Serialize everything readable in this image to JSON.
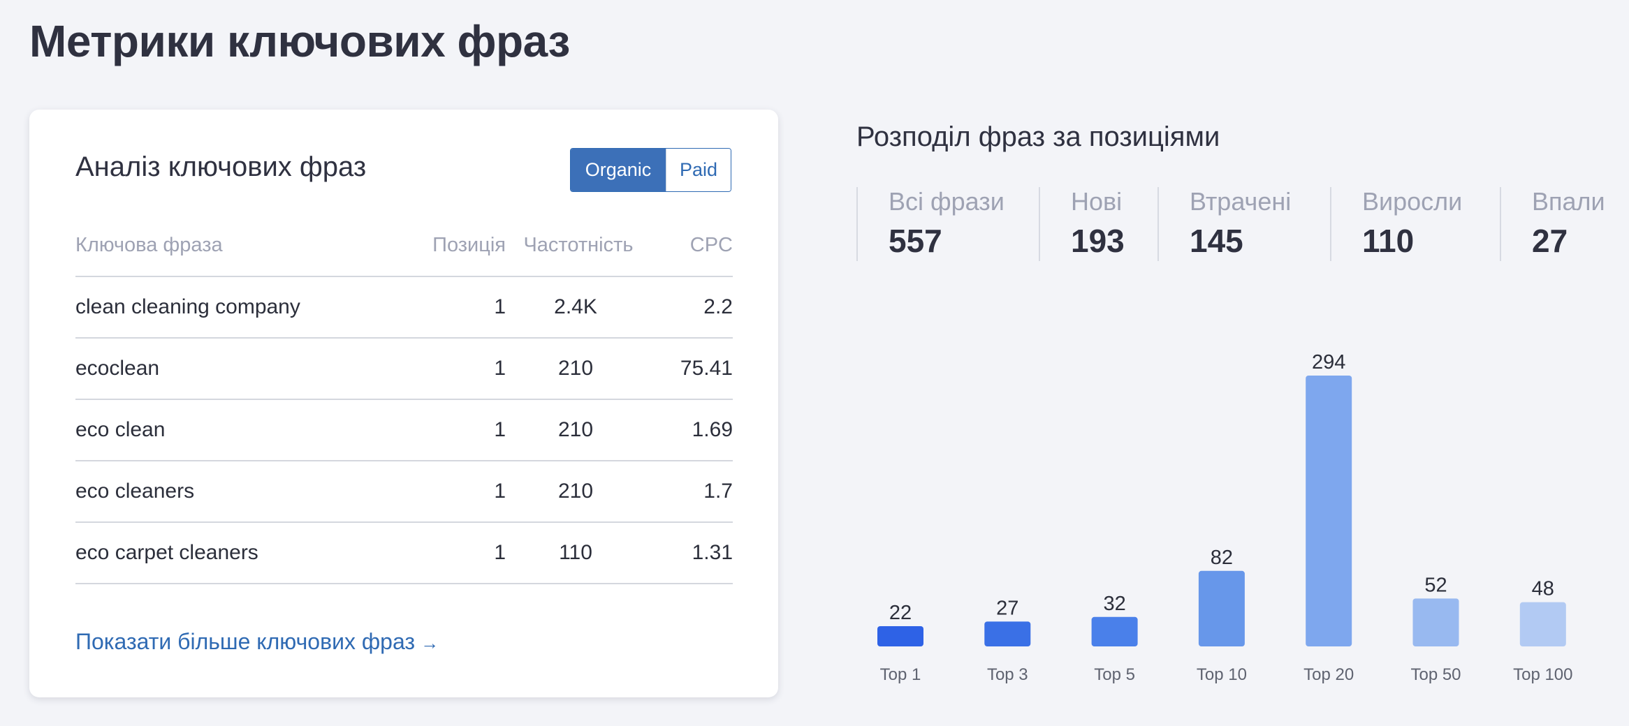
{
  "page": {
    "title": "Метрики ключових фраз"
  },
  "keywords_card": {
    "title": "Аналіз ключових фраз",
    "toggle": {
      "organic_label": "Organic",
      "paid_label": "Paid",
      "selected": "Organic"
    },
    "columns": {
      "phrase": "Ключова фраза",
      "position": "Позиція",
      "frequency": "Частотність",
      "cpc": "CPC"
    },
    "rows": [
      {
        "phrase": "clean cleaning company",
        "position": "1",
        "frequency": "2.4K",
        "cpc": "2.2"
      },
      {
        "phrase": "ecoclean",
        "position": "1",
        "frequency": "210",
        "cpc": "75.41"
      },
      {
        "phrase": "eco clean",
        "position": "1",
        "frequency": "210",
        "cpc": "1.69"
      },
      {
        "phrase": "eco cleaners",
        "position": "1",
        "frequency": "210",
        "cpc": "1.7"
      },
      {
        "phrase": "eco carpet cleaners",
        "position": "1",
        "frequency": "110",
        "cpc": "1.31"
      }
    ],
    "more_link": "Показати більше ключових фраз",
    "more_arrow": "→"
  },
  "distribution": {
    "title": "Розподіл фраз за позиціями",
    "stats": [
      {
        "label": "Всі фрази",
        "value": "557"
      },
      {
        "label": "Нові",
        "value": "193"
      },
      {
        "label": "Втрачені",
        "value": "145"
      },
      {
        "label": "Виросли",
        "value": "110"
      },
      {
        "label": "Впали",
        "value": "27"
      }
    ]
  },
  "chart_data": {
    "type": "bar",
    "title": "",
    "xlabel": "",
    "ylabel": "",
    "categories": [
      "Top 1",
      "Top 3",
      "Top 5",
      "Top 10",
      "Top 20",
      "Top 50",
      "Top 100"
    ],
    "values": [
      22,
      27,
      32,
      82,
      294,
      52,
      48
    ],
    "bar_colors": [
      "#2e62e6",
      "#3a70e6",
      "#4a80ea",
      "#6797ea",
      "#7ea7ee",
      "#98b9f0",
      "#b2caf3"
    ],
    "ylim": [
      0,
      294
    ],
    "grid": false,
    "legend": "none",
    "data_labels": true
  }
}
